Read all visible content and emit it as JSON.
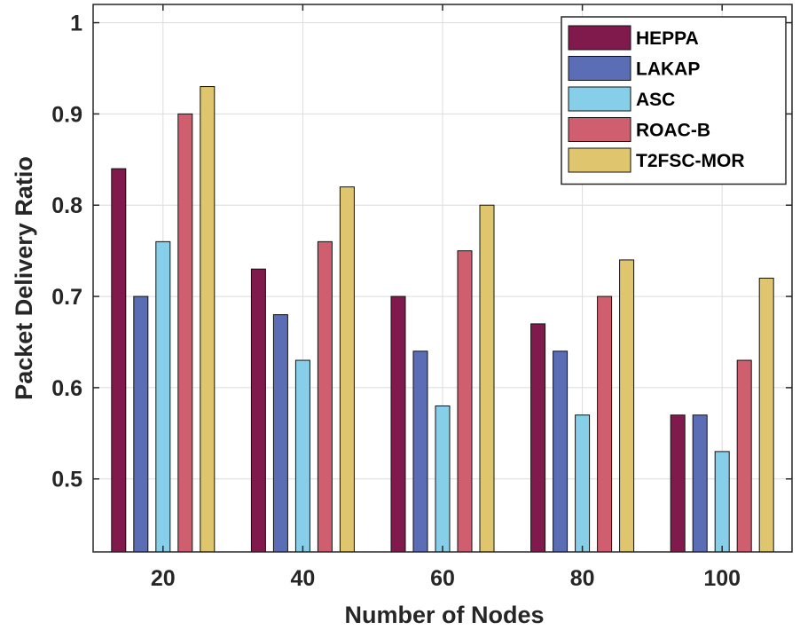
{
  "chart_data": {
    "type": "bar",
    "title": "",
    "xlabel": "Number of Nodes",
    "ylabel": "Packet Delivery Ratio",
    "categories": [
      "20",
      "40",
      "60",
      "80",
      "100"
    ],
    "ylim": [
      0.42,
      1.02
    ],
    "yticks": [
      0.5,
      0.6,
      0.7,
      0.8,
      0.9,
      1
    ],
    "ytick_labels": [
      "0.5",
      "0.6",
      "0.7",
      "0.8",
      "0.9",
      "1"
    ],
    "grid": true,
    "legend_position": "top-right",
    "series": [
      {
        "name": "HEPPA",
        "color": "#801a4d",
        "values": [
          0.84,
          0.73,
          0.7,
          0.67,
          0.57
        ]
      },
      {
        "name": "LAKAP",
        "color": "#5b6db5",
        "values": [
          0.7,
          0.68,
          0.64,
          0.64,
          0.57
        ]
      },
      {
        "name": "ASC",
        "color": "#87cfe9",
        "values": [
          0.76,
          0.63,
          0.58,
          0.57,
          0.53
        ]
      },
      {
        "name": "ROAC-B",
        "color": "#cf5f6e",
        "values": [
          0.9,
          0.76,
          0.75,
          0.7,
          0.63
        ]
      },
      {
        "name": "T2FSC-MOR",
        "color": "#dfc66e",
        "values": [
          0.93,
          0.82,
          0.8,
          0.74,
          0.72
        ]
      }
    ]
  }
}
